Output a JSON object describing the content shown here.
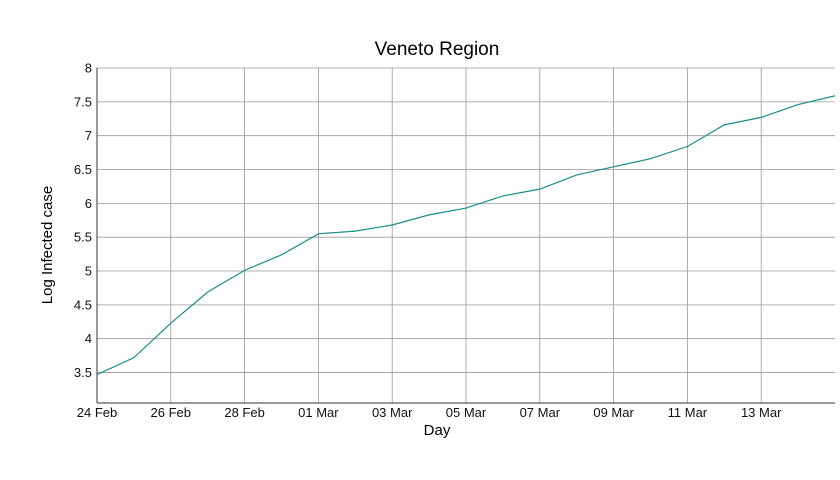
{
  "chart_data": {
    "type": "line",
    "title": "Veneto Region",
    "xlabel": "Day",
    "ylabel": "Log Infected case",
    "x_ticks": [
      "24 Feb",
      "26 Feb",
      "28 Feb",
      "01 Mar",
      "03 Mar",
      "05 Mar",
      "07 Mar",
      "09 Mar",
      "11 Mar",
      "13 Mar"
    ],
    "y_ticks": [
      "3.5",
      "4",
      "4.5",
      "5",
      "5.5",
      "6",
      "6.5",
      "7",
      "7.5",
      "8"
    ],
    "ylim": [
      3.05,
      8.0
    ],
    "xlim": [
      "2020-02-24",
      "2020-03-15"
    ],
    "grid": true,
    "line_color": "#1a8c8c",
    "series": [
      {
        "x": [
          "2020-02-24",
          "2020-02-25",
          "2020-02-26",
          "2020-02-27",
          "2020-02-28",
          "2020-02-29",
          "2020-03-01",
          "2020-03-02",
          "2020-03-03",
          "2020-03-04",
          "2020-03-05",
          "2020-03-06",
          "2020-03-07",
          "2020-03-08",
          "2020-03-09",
          "2020-03-10",
          "2020-03-11",
          "2020-03-12",
          "2020-03-13",
          "2020-03-14",
          "2020-03-15"
        ],
        "values": [
          3.47,
          3.72,
          4.23,
          4.69,
          5.01,
          5.24,
          5.55,
          5.59,
          5.68,
          5.83,
          5.93,
          6.11,
          6.21,
          6.42,
          6.54,
          6.66,
          6.84,
          7.16,
          7.27,
          7.46,
          7.59
        ]
      }
    ]
  }
}
